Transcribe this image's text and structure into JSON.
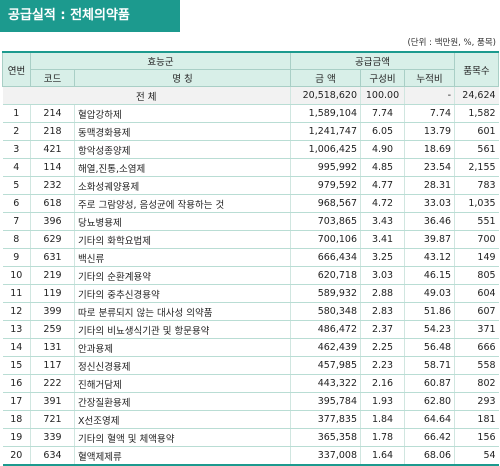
{
  "title": "공급실적 : 전체의약품",
  "unit_note": "(단위 : 백만원, %, 품목)",
  "headers": {
    "rank": "연번",
    "efficacy_group": "효능군",
    "supply_amount": "공급금액",
    "item_count": "품목수",
    "code": "코드",
    "name": "명 칭",
    "amount": "금 액",
    "ratio": "구성비",
    "cumulative": "누적비"
  },
  "total": {
    "label": "전 체",
    "amount": "20,518,620",
    "ratio": "100.00",
    "cumulative": "-",
    "count": "24,624"
  },
  "rows": [
    {
      "rank": "1",
      "code": "214",
      "name": "혈압강하제",
      "amount": "1,589,104",
      "ratio": "7.74",
      "cumulative": "7.74",
      "count": "1,582"
    },
    {
      "rank": "2",
      "code": "218",
      "name": "동맥경화용제",
      "amount": "1,241,747",
      "ratio": "6.05",
      "cumulative": "13.79",
      "count": "601"
    },
    {
      "rank": "3",
      "code": "421",
      "name": "항악성종양제",
      "amount": "1,006,425",
      "ratio": "4.90",
      "cumulative": "18.69",
      "count": "561"
    },
    {
      "rank": "4",
      "code": "114",
      "name": "해열,진통,소염제",
      "amount": "995,992",
      "ratio": "4.85",
      "cumulative": "23.54",
      "count": "2,155"
    },
    {
      "rank": "5",
      "code": "232",
      "name": "소화성궤양용제",
      "amount": "979,592",
      "ratio": "4.77",
      "cumulative": "28.31",
      "count": "783"
    },
    {
      "rank": "6",
      "code": "618",
      "name": "주로 그람양성, 음성균에 작용하는 것",
      "amount": "968,567",
      "ratio": "4.72",
      "cumulative": "33.03",
      "count": "1,035"
    },
    {
      "rank": "7",
      "code": "396",
      "name": "당뇨병용제",
      "amount": "703,865",
      "ratio": "3.43",
      "cumulative": "36.46",
      "count": "551"
    },
    {
      "rank": "8",
      "code": "629",
      "name": "기타의 화학요법제",
      "amount": "700,106",
      "ratio": "3.41",
      "cumulative": "39.87",
      "count": "700"
    },
    {
      "rank": "9",
      "code": "631",
      "name": "백신류",
      "amount": "666,434",
      "ratio": "3.25",
      "cumulative": "43.12",
      "count": "149"
    },
    {
      "rank": "10",
      "code": "219",
      "name": "기타의 순환계용약",
      "amount": "620,718",
      "ratio": "3.03",
      "cumulative": "46.15",
      "count": "805"
    },
    {
      "rank": "11",
      "code": "119",
      "name": "기타의 중추신경용약",
      "amount": "589,932",
      "ratio": "2.88",
      "cumulative": "49.03",
      "count": "604"
    },
    {
      "rank": "12",
      "code": "399",
      "name": "따로 분류되지 않는 대사성 의약품",
      "amount": "580,348",
      "ratio": "2.83",
      "cumulative": "51.86",
      "count": "607"
    },
    {
      "rank": "13",
      "code": "259",
      "name": "기타의 비뇨생식기관 및 항문용약",
      "amount": "486,472",
      "ratio": "2.37",
      "cumulative": "54.23",
      "count": "371"
    },
    {
      "rank": "14",
      "code": "131",
      "name": "안과용제",
      "amount": "462,439",
      "ratio": "2.25",
      "cumulative": "56.48",
      "count": "666"
    },
    {
      "rank": "15",
      "code": "117",
      "name": "정신신경용제",
      "amount": "457,985",
      "ratio": "2.23",
      "cumulative": "58.71",
      "count": "558"
    },
    {
      "rank": "16",
      "code": "222",
      "name": "진해거담제",
      "amount": "443,322",
      "ratio": "2.16",
      "cumulative": "60.87",
      "count": "802"
    },
    {
      "rank": "17",
      "code": "391",
      "name": "간장질환용제",
      "amount": "395,784",
      "ratio": "1.93",
      "cumulative": "62.80",
      "count": "293"
    },
    {
      "rank": "18",
      "code": "721",
      "name": "X선조영제",
      "amount": "377,835",
      "ratio": "1.84",
      "cumulative": "64.64",
      "count": "181"
    },
    {
      "rank": "19",
      "code": "339",
      "name": "기타의 혈액 및 체액용약",
      "amount": "365,358",
      "ratio": "1.78",
      "cumulative": "66.42",
      "count": "156"
    },
    {
      "rank": "20",
      "code": "634",
      "name": "혈액제제류",
      "amount": "337,008",
      "ratio": "1.64",
      "cumulative": "68.06",
      "count": "54"
    }
  ]
}
